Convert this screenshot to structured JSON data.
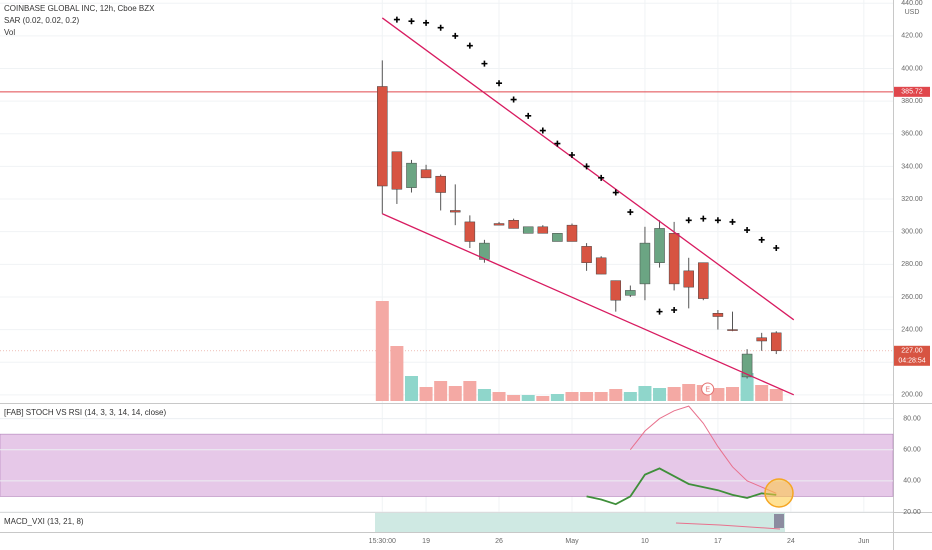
{
  "chart_data": [
    {
      "type": "candlestick",
      "title": "COINBASE GLOBAL INC, 12h, Cboe BZX",
      "indicator_labels": [
        "SAR (0.02, 0.02, 0.2)",
        "Vol"
      ],
      "currency": "USD",
      "open": [
        389,
        349,
        327,
        338,
        334,
        313,
        306,
        283,
        305,
        307,
        299,
        303,
        294,
        304,
        291,
        284,
        270,
        261,
        268,
        281,
        299,
        276,
        281,
        250,
        240,
        211,
        235,
        238
      ],
      "high": [
        405,
        349,
        344,
        341,
        335,
        329,
        310,
        295,
        306,
        308,
        303,
        304,
        299,
        305,
        293,
        285,
        270,
        267,
        303,
        307,
        306,
        284,
        281,
        252,
        251,
        228,
        238,
        239
      ],
      "low": [
        311,
        317,
        324,
        333,
        313,
        304,
        290,
        281,
        304,
        302,
        299,
        299,
        294,
        294,
        276,
        274,
        251,
        260,
        258,
        278,
        264,
        253,
        258,
        240,
        239,
        210,
        227,
        225
      ],
      "close": [
        328,
        326,
        342,
        333,
        324,
        312,
        294,
        293,
        304,
        302,
        303,
        299,
        299,
        294,
        281,
        274,
        258,
        264,
        293,
        302,
        268,
        266,
        259,
        248,
        239.5,
        225,
        233,
        227
      ],
      "volume": [
        100,
        55,
        25,
        14,
        20,
        15,
        20,
        12,
        9,
        6,
        6,
        5,
        7,
        9,
        9,
        9,
        12,
        9,
        15,
        13,
        14,
        17,
        16,
        13,
        14,
        28,
        16,
        12
      ],
      "sar": [
        null,
        430,
        429,
        428,
        425,
        420,
        414,
        403,
        391,
        381,
        371,
        362,
        354,
        347,
        340,
        333,
        324,
        312,
        null,
        251,
        252,
        307,
        308,
        307,
        306,
        301,
        295,
        290
      ],
      "xlim": [
        -26.2,
        35
      ],
      "xticks": [
        {
          "value": 0,
          "label": "15:30:00"
        },
        {
          "value": 3,
          "label": "19"
        },
        {
          "value": 8,
          "label": "26"
        },
        {
          "value": 13,
          "label": "May"
        },
        {
          "value": 18,
          "label": "10"
        },
        {
          "value": 23,
          "label": "17"
        },
        {
          "value": 28,
          "label": "24"
        },
        {
          "value": 33,
          "label": "Jun"
        }
      ],
      "ylim": [
        195,
        442
      ],
      "yticks": [
        {
          "value": 440,
          "label": "440.00"
        },
        {
          "value": 420,
          "label": "420.00"
        },
        {
          "value": 400,
          "label": "400.00"
        },
        {
          "value": 380,
          "label": "380.00"
        },
        {
          "value": 360,
          "label": "360.00"
        },
        {
          "value": 340,
          "label": "340.00"
        },
        {
          "value": 320,
          "label": "320.00"
        },
        {
          "value": 300,
          "label": "300.00"
        },
        {
          "value": 280,
          "label": "280.00"
        },
        {
          "value": 260,
          "label": "260.00"
        },
        {
          "value": 240,
          "label": "240.00"
        },
        {
          "value": 220,
          "label": "220.00"
        },
        {
          "value": 200,
          "label": "200.00"
        }
      ],
      "hline": {
        "value": 385.72,
        "label": "385.72",
        "color": "#e0474c"
      },
      "last_price": {
        "value": 227,
        "label": "227.00",
        "countdown": "04:28:54",
        "color": "#d75442"
      },
      "trendlines": [
        {
          "x": [
            0,
            28.2
          ],
          "y": [
            431,
            246
          ]
        },
        {
          "x": [
            0,
            28.2
          ],
          "y": [
            311,
            200
          ]
        }
      ],
      "earnings": {
        "x": 22.3,
        "label": "E"
      },
      "colors": {
        "up": "#6ba583",
        "down": "#d75442",
        "vol_up": "#8fd6cb",
        "vol_down": "#f4a9a4",
        "sar": "#000000",
        "trend": "#d81b60"
      },
      "grid": true
    },
    {
      "type": "line",
      "title": "[FAB] STOCH VS RSI (14, 3, 3, 14, 14, close)",
      "x": [
        14,
        15,
        16,
        17,
        18,
        19,
        20,
        21,
        22,
        23,
        24,
        25,
        26,
        27
      ],
      "series": [
        {
          "color": "#3f8f3a",
          "values": [
            30,
            28,
            25,
            30,
            44,
            48,
            43,
            38,
            36,
            34,
            31,
            29,
            32,
            31
          ]
        },
        {
          "color": "#e8718d",
          "values": [
            null,
            null,
            null,
            60,
            72,
            80,
            85,
            88,
            77,
            62,
            49,
            40,
            36,
            32
          ]
        }
      ],
      "band": [
        30,
        70
      ],
      "band_color": "#e6c8e8",
      "ylim": [
        20,
        90
      ],
      "yticks": [
        {
          "value": 80,
          "label": "80.00"
        },
        {
          "value": 60,
          "label": "60.00"
        },
        {
          "value": 40,
          "label": "40.00"
        },
        {
          "value": 20,
          "label": "20.00"
        }
      ],
      "grid": true
    },
    {
      "type": "macd",
      "title": "MACD_VXI (13, 21, 8)"
    }
  ]
}
